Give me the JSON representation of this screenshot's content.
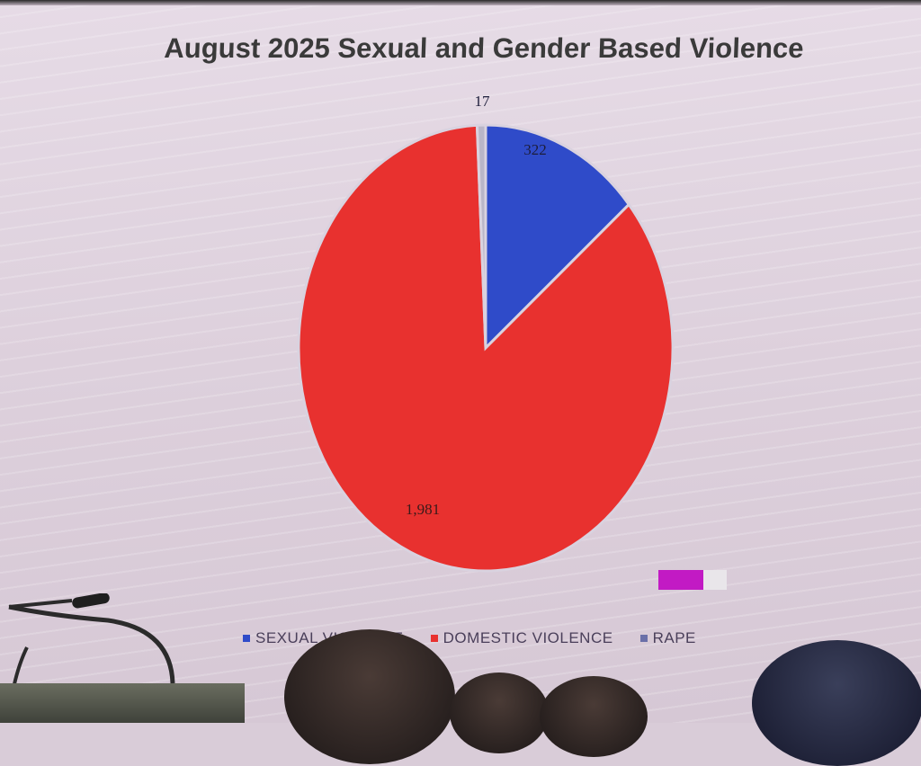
{
  "chart_data": {
    "type": "pie",
    "title": "August 2025 Sexual and Gender Based Violence",
    "slices": [
      {
        "name": "SEXUAL VIOLENCE",
        "value": 322,
        "label": "322",
        "color": "#2f4bc9"
      },
      {
        "name": "DOMESTIC VIOLENCE",
        "value": 1981,
        "label": "1,981",
        "color": "#e8312f"
      },
      {
        "name": "RAPE",
        "value": 17,
        "label": "17",
        "color": "#b9b6c8"
      }
    ],
    "legend_position": "bottom"
  },
  "legend": {
    "items": [
      {
        "label": "SEXUAL VIOLENCE",
        "color": "#2f4bc9"
      },
      {
        "label": "DOMESTIC VIOLENCE",
        "color": "#e8312f"
      },
      {
        "label": "RAPE",
        "color": "#6a6fa8"
      }
    ]
  },
  "colors": {
    "screen_bg": "#e3d8e2",
    "title_text": "#3a3a3a",
    "magenta_box": "#c21ac4"
  }
}
